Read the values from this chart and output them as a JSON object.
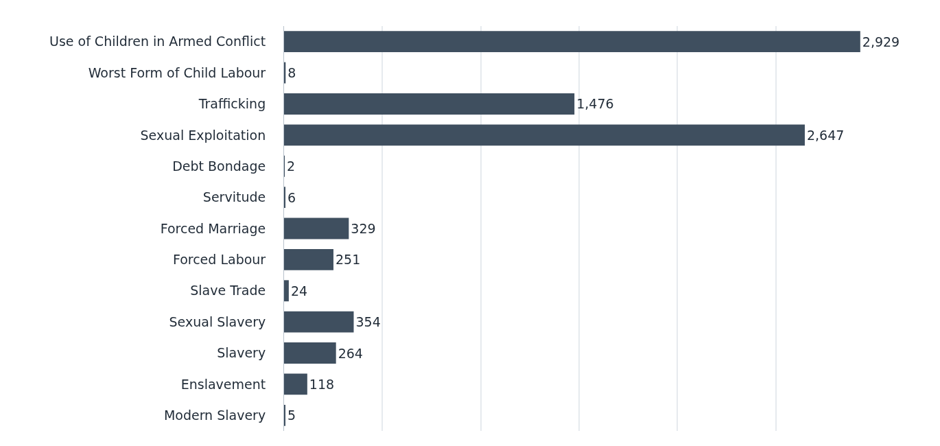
{
  "chart_data": {
    "type": "bar",
    "orientation": "horizontal",
    "categories": [
      "Use of Children in Armed Conflict",
      "Worst Form of Child Labour",
      "Trafficking",
      "Sexual Exploitation",
      "Debt Bondage",
      "Servitude",
      "Forced Marriage",
      "Forced Labour",
      "Slave Trade",
      "Sexual Slavery",
      "Slavery",
      "Enslavement",
      "Modern Slavery"
    ],
    "values": [
      2929,
      8,
      1476,
      2647,
      2,
      6,
      329,
      251,
      24,
      354,
      264,
      118,
      5
    ],
    "color": "#3f4f5f",
    "value_labels": [
      "2,929",
      "8",
      "1,476",
      "2,647",
      "2",
      "6",
      "329",
      "251",
      "24",
      "354",
      "264",
      "118",
      "5"
    ],
    "xticks": [
      {
        "value": 0,
        "label": null
      },
      {
        "value": 500,
        "label": null
      },
      {
        "value": 1000,
        "label": null
      },
      {
        "value": 1500,
        "label": null
      },
      {
        "value": 2000,
        "label": null
      },
      {
        "value": 2500,
        "label": null
      }
    ],
    "grid": "x",
    "tick_labels": "y"
  }
}
